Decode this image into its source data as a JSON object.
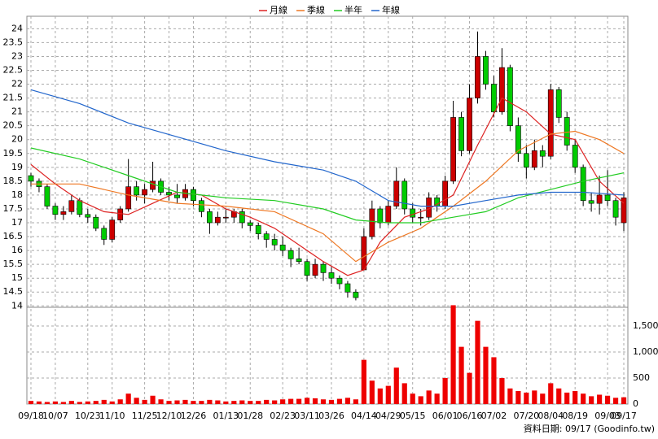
{
  "chart_data": {
    "type": "candlestick",
    "legend": {
      "position": "top"
    },
    "source": "資料日期: 09/17  (Goodinfo.tw)",
    "xlim": [
      -0.5,
      73.5
    ],
    "xticks": [
      {
        "value": 0,
        "label": "09/18"
      },
      {
        "value": 3,
        "label": "10/07"
      },
      {
        "value": 7,
        "label": "10/23"
      },
      {
        "value": 10,
        "label": "11/10"
      },
      {
        "value": 14,
        "label": "11/25"
      },
      {
        "value": 17,
        "label": "12/10"
      },
      {
        "value": 20,
        "label": "12/26"
      },
      {
        "value": 24,
        "label": "01/13"
      },
      {
        "value": 27,
        "label": "01/28"
      },
      {
        "value": 31,
        "label": "02/23"
      },
      {
        "value": 34,
        "label": "03/11"
      },
      {
        "value": 37,
        "label": "03/26"
      },
      {
        "value": 41,
        "label": "04/14"
      },
      {
        "value": 44,
        "label": "04/29"
      },
      {
        "value": 47,
        "label": "05/15"
      },
      {
        "value": 51,
        "label": "06/01"
      },
      {
        "value": 54,
        "label": "06/16"
      },
      {
        "value": 57,
        "label": "07/02"
      },
      {
        "value": 61,
        "label": "07/20"
      },
      {
        "value": 64,
        "label": "08/04"
      },
      {
        "value": 67,
        "label": "08/19"
      },
      {
        "value": 71,
        "label": "09/03"
      },
      {
        "value": 73,
        "label": "09/17"
      }
    ],
    "ylim": [
      13.95,
      24.45
    ],
    "yticks": [
      14,
      14.5,
      15,
      15.5,
      16,
      16.5,
      17,
      17.5,
      18,
      18.5,
      19,
      19.5,
      20,
      20.5,
      21,
      21.5,
      22,
      22.5,
      23,
      23.5,
      24
    ],
    "grid": true,
    "up_color": "#cc0000",
    "down_color": "#00cc00",
    "open": [
      18.7,
      18.5,
      18.3,
      17.6,
      17.3,
      17.4,
      17.8,
      17.3,
      17.2,
      16.8,
      16.4,
      17.1,
      17.5,
      18.3,
      18.0,
      18.2,
      18.5,
      18.1,
      18.0,
      17.9,
      18.2,
      17.8,
      17.4,
      17.0,
      17.2,
      17.2,
      17.4,
      17.0,
      16.9,
      16.6,
      16.4,
      16.2,
      16.0,
      15.7,
      15.6,
      15.1,
      15.5,
      15.2,
      15.0,
      14.8,
      14.5,
      15.3,
      16.5,
      17.5,
      17.0,
      17.6,
      18.5,
      17.5,
      17.2,
      17.2,
      17.9,
      17.6,
      18.5,
      20.8,
      19.6,
      21.5,
      23.0,
      22.0,
      21.0,
      22.6,
      20.5,
      19.5,
      19.0,
      19.6,
      19.4,
      21.8,
      20.8,
      19.8,
      19.0,
      17.8,
      17.7,
      18.0,
      17.8,
      17.0
    ],
    "high": [
      18.8,
      18.6,
      18.4,
      17.7,
      17.6,
      18.0,
      17.9,
      17.5,
      17.3,
      16.9,
      17.2,
      17.6,
      19.3,
      18.5,
      18.4,
      19.2,
      18.6,
      18.3,
      18.4,
      18.4,
      18.3,
      17.9,
      17.5,
      17.4,
      17.5,
      17.5,
      17.5,
      17.1,
      17.0,
      16.7,
      16.6,
      16.5,
      16.1,
      16.1,
      15.7,
      15.7,
      15.6,
      15.4,
      15.1,
      14.9,
      14.6,
      16.8,
      17.8,
      17.6,
      17.8,
      19.0,
      18.6,
      17.7,
      17.5,
      18.1,
      18.0,
      18.7,
      21.4,
      21.0,
      22.0,
      23.9,
      23.2,
      22.3,
      23.3,
      22.7,
      20.8,
      19.8,
      20.0,
      19.8,
      22.0,
      21.9,
      21.0,
      20.0,
      19.1,
      18.1,
      18.7,
      18.9,
      17.9,
      18.1
    ],
    "low": [
      18.3,
      18.1,
      17.5,
      17.1,
      17.1,
      17.3,
      17.2,
      17.0,
      16.7,
      16.2,
      16.3,
      17.0,
      17.4,
      17.8,
      17.7,
      18.1,
      18.0,
      17.8,
      17.7,
      17.8,
      17.6,
      17.2,
      16.6,
      16.9,
      17.0,
      17.0,
      16.8,
      16.7,
      16.4,
      16.1,
      16.0,
      15.8,
      15.4,
      15.5,
      14.9,
      15.0,
      14.9,
      14.8,
      14.6,
      14.3,
      14.2,
      15.3,
      16.4,
      16.8,
      16.9,
      17.5,
      17.3,
      17.0,
      16.9,
      17.1,
      17.4,
      17.5,
      18.4,
      19.4,
      19.5,
      21.3,
      21.8,
      20.8,
      20.9,
      20.3,
      19.2,
      18.6,
      18.9,
      19.0,
      19.3,
      20.6,
      19.6,
      18.8,
      17.6,
      17.4,
      17.3,
      17.6,
      16.9,
      16.7
    ],
    "close": [
      18.5,
      18.3,
      17.6,
      17.3,
      17.4,
      17.8,
      17.3,
      17.2,
      16.8,
      16.4,
      17.1,
      17.5,
      18.3,
      18.0,
      18.2,
      18.5,
      18.1,
      18.0,
      17.9,
      18.2,
      17.8,
      17.4,
      17.0,
      17.2,
      17.2,
      17.4,
      17.0,
      16.9,
      16.6,
      16.4,
      16.2,
      16.0,
      15.7,
      15.6,
      15.1,
      15.5,
      15.2,
      15.0,
      14.8,
      14.5,
      14.3,
      16.5,
      17.5,
      17.0,
      17.6,
      18.5,
      17.5,
      17.2,
      17.2,
      17.9,
      17.6,
      18.5,
      20.8,
      19.6,
      21.5,
      23.0,
      22.0,
      21.0,
      22.6,
      20.5,
      19.5,
      19.0,
      19.6,
      19.4,
      21.8,
      20.8,
      19.8,
      19.0,
      17.8,
      17.7,
      18.0,
      17.8,
      17.2,
      17.9
    ],
    "volume": {
      "color": "#ee0000",
      "ylim": [
        0,
        1860
      ],
      "yticks": [
        0,
        500,
        {
          "value": 1000,
          "label": "1,000"
        },
        {
          "value": 1500,
          "label": "1,500"
        }
      ],
      "values": [
        60,
        50,
        40,
        50,
        40,
        60,
        40,
        50,
        60,
        80,
        50,
        90,
        200,
        120,
        80,
        160,
        90,
        60,
        70,
        80,
        60,
        60,
        80,
        70,
        50,
        60,
        70,
        60,
        60,
        80,
        70,
        90,
        100,
        100,
        120,
        110,
        90,
        80,
        100,
        120,
        90,
        850,
        450,
        300,
        350,
        700,
        400,
        200,
        150,
        260,
        200,
        500,
        1900,
        1100,
        600,
        1600,
        1100,
        900,
        500,
        300,
        250,
        220,
        260,
        200,
        400,
        300,
        220,
        250,
        200,
        150,
        180,
        160,
        120,
        130
      ]
    },
    "series": [
      {
        "name": "月線",
        "color": "#dd2222",
        "x": [
          0,
          3,
          6,
          9,
          12,
          15,
          18,
          21,
          24,
          27,
          30,
          33,
          36,
          39,
          41,
          43,
          46,
          49,
          52,
          55,
          58,
          61,
          64,
          67,
          70,
          73
        ],
        "values": [
          19.1,
          18.4,
          17.8,
          17.4,
          17.3,
          17.7,
          18.1,
          18.0,
          17.5,
          17.2,
          16.8,
          16.2,
          15.6,
          15.1,
          15.3,
          16.3,
          17.2,
          17.5,
          18.0,
          19.8,
          21.5,
          21.0,
          20.2,
          20.0,
          18.5,
          17.7
        ]
      },
      {
        "name": "季線",
        "color": "#ee7722",
        "x": [
          0,
          6,
          12,
          18,
          24,
          30,
          36,
          40,
          44,
          48,
          52,
          56,
          60,
          64,
          67,
          70,
          73
        ],
        "values": [
          18.4,
          18.4,
          18.0,
          17.7,
          17.6,
          17.4,
          16.6,
          15.6,
          16.3,
          16.8,
          17.6,
          18.5,
          19.6,
          20.2,
          20.3,
          20.0,
          19.5
        ]
      },
      {
        "name": "半年",
        "color": "#22cc22",
        "x": [
          0,
          6,
          12,
          18,
          24,
          30,
          36,
          40,
          44,
          48,
          52,
          56,
          60,
          64,
          68,
          73
        ],
        "values": [
          19.7,
          19.3,
          18.7,
          18.1,
          17.9,
          17.8,
          17.5,
          17.1,
          17.0,
          17.0,
          17.2,
          17.4,
          17.9,
          18.2,
          18.5,
          18.8
        ]
      },
      {
        "name": "年線",
        "color": "#2266cc",
        "x": [
          0,
          6,
          12,
          18,
          24,
          30,
          36,
          40,
          44,
          48,
          52,
          56,
          60,
          64,
          68,
          73
        ],
        "values": [
          21.8,
          21.3,
          20.6,
          20.1,
          19.6,
          19.2,
          18.9,
          18.5,
          17.8,
          17.6,
          17.6,
          17.8,
          18.0,
          18.1,
          18.1,
          18.0
        ]
      }
    ]
  }
}
